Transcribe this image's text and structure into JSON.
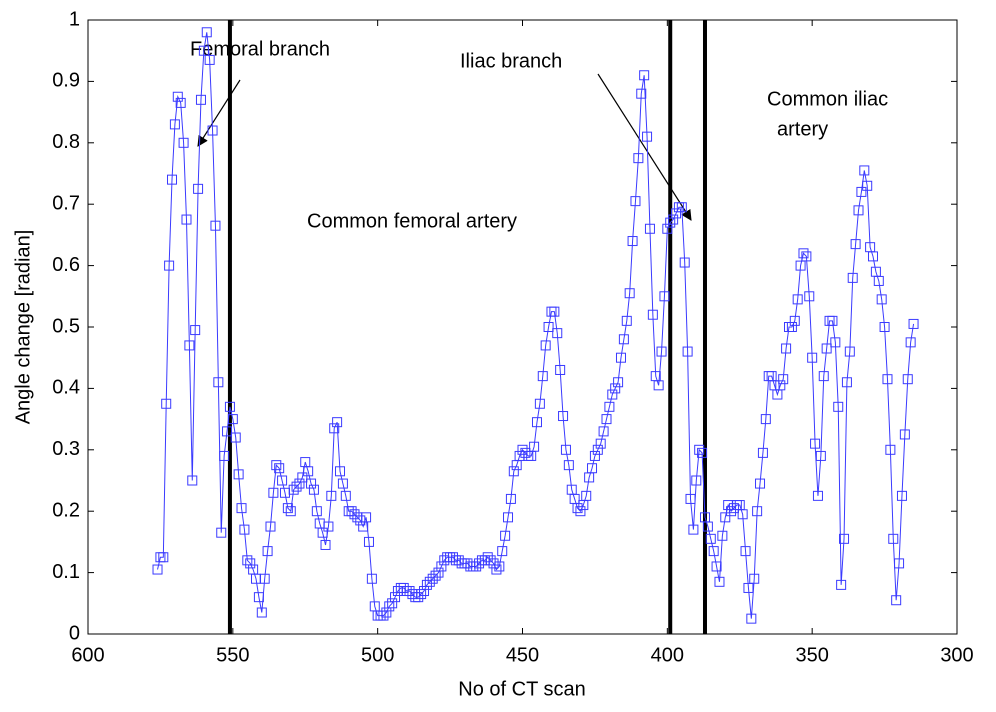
{
  "chart_data": {
    "type": "line",
    "xlabel": "No of CT scan",
    "ylabel": "Angle change [radian]",
    "xlim": [
      600,
      300
    ],
    "xticks": [
      600,
      550,
      500,
      450,
      400,
      350,
      300
    ],
    "ylim": [
      0,
      1
    ],
    "yticks": [
      0,
      0.1,
      0.2,
      0.3,
      0.4,
      0.5,
      0.6,
      0.7,
      0.8,
      0.9,
      1
    ],
    "vlines": [
      551,
      399,
      387
    ],
    "annotations": [
      "Femoral branch",
      "Iliac branch",
      "Common iliac",
      "artery",
      "Common femoral artery"
    ],
    "color": "#3a3aff",
    "x": [
      576,
      575,
      574,
      573,
      572,
      571,
      570,
      569,
      568,
      567,
      566,
      565,
      564,
      563,
      562,
      561,
      560,
      559,
      558,
      557,
      556,
      555,
      554,
      553,
      552,
      551,
      550,
      549,
      548,
      547,
      546,
      545,
      544,
      543,
      542,
      541,
      540,
      539,
      538,
      537,
      536,
      535,
      534,
      533,
      532,
      531,
      530,
      529,
      528,
      527,
      526,
      525,
      524,
      523,
      522,
      521,
      520,
      519,
      518,
      517,
      516,
      515,
      514,
      513,
      512,
      511,
      510,
      509,
      508,
      507,
      506,
      505,
      504,
      503,
      502,
      501,
      500,
      499,
      498,
      497,
      496,
      495,
      494,
      493,
      492,
      491,
      490,
      489,
      488,
      487,
      486,
      485,
      484,
      483,
      482,
      481,
      480,
      479,
      478,
      477,
      476,
      475,
      474,
      473,
      472,
      471,
      470,
      469,
      468,
      467,
      466,
      465,
      464,
      463,
      462,
      461,
      460,
      459,
      458,
      457,
      456,
      455,
      454,
      453,
      452,
      451,
      450,
      449,
      448,
      447,
      446,
      445,
      444,
      443,
      442,
      441,
      440,
      439,
      438,
      437,
      436,
      435,
      434,
      433,
      432,
      431,
      430,
      429,
      428,
      427,
      426,
      425,
      424,
      423,
      422,
      421,
      420,
      419,
      418,
      417,
      416,
      415,
      414,
      413,
      412,
      411,
      410,
      409,
      408,
      407,
      406,
      405,
      404,
      403,
      402,
      401,
      400,
      399,
      398,
      397,
      396,
      395,
      394,
      393,
      392,
      391,
      390,
      389,
      388,
      387,
      386,
      385,
      384,
      383,
      382,
      381,
      380,
      379,
      378,
      377,
      376,
      375,
      374,
      373,
      372,
      371,
      370,
      369,
      368,
      367,
      366,
      365,
      364,
      363,
      362,
      361,
      360,
      359,
      358,
      357,
      356,
      355,
      354,
      353,
      352,
      351,
      350,
      349,
      348,
      347,
      346,
      345,
      344,
      343,
      342,
      341,
      340,
      339,
      338,
      337,
      336,
      335,
      334,
      333,
      332,
      331,
      330,
      329,
      328,
      327,
      326,
      325,
      324,
      323,
      322,
      321,
      320,
      319,
      318,
      317,
      316,
      315
    ],
    "values": [
      0.105,
      0.125,
      0.125,
      0.375,
      0.6,
      0.74,
      0.83,
      0.875,
      0.865,
      0.8,
      0.675,
      0.47,
      0.25,
      0.495,
      0.725,
      0.87,
      0.95,
      0.98,
      0.935,
      0.82,
      0.665,
      0.41,
      0.165,
      0.29,
      0.33,
      0.37,
      0.35,
      0.32,
      0.26,
      0.205,
      0.17,
      0.12,
      0.115,
      0.105,
      0.09,
      0.06,
      0.035,
      0.09,
      0.135,
      0.175,
      0.23,
      0.275,
      0.27,
      0.25,
      0.23,
      0.205,
      0.2,
      0.235,
      0.24,
      0.245,
      0.255,
      0.28,
      0.265,
      0.245,
      0.235,
      0.2,
      0.18,
      0.165,
      0.145,
      0.175,
      0.225,
      0.335,
      0.345,
      0.265,
      0.245,
      0.225,
      0.2,
      0.2,
      0.195,
      0.19,
      0.185,
      0.175,
      0.19,
      0.15,
      0.09,
      0.045,
      0.03,
      0.03,
      0.03,
      0.035,
      0.045,
      0.05,
      0.06,
      0.07,
      0.075,
      0.075,
      0.07,
      0.07,
      0.065,
      0.06,
      0.06,
      0.065,
      0.07,
      0.08,
      0.085,
      0.09,
      0.095,
      0.1,
      0.11,
      0.12,
      0.125,
      0.125,
      0.125,
      0.12,
      0.12,
      0.115,
      0.115,
      0.115,
      0.11,
      0.11,
      0.11,
      0.115,
      0.12,
      0.12,
      0.125,
      0.12,
      0.115,
      0.105,
      0.11,
      0.135,
      0.16,
      0.19,
      0.22,
      0.265,
      0.275,
      0.29,
      0.3,
      0.295,
      0.29,
      0.29,
      0.305,
      0.345,
      0.375,
      0.42,
      0.47,
      0.5,
      0.525,
      0.525,
      0.49,
      0.43,
      0.355,
      0.3,
      0.275,
      0.235,
      0.22,
      0.205,
      0.2,
      0.21,
      0.225,
      0.255,
      0.27,
      0.29,
      0.3,
      0.31,
      0.33,
      0.35,
      0.37,
      0.39,
      0.4,
      0.41,
      0.45,
      0.48,
      0.51,
      0.555,
      0.64,
      0.705,
      0.775,
      0.88,
      0.91,
      0.81,
      0.66,
      0.52,
      0.42,
      0.405,
      0.46,
      0.55,
      0.66,
      0.67,
      0.675,
      0.685,
      0.695,
      0.695,
      0.605,
      0.46,
      0.22,
      0.17,
      0.25,
      0.3,
      0.295,
      0.19,
      0.175,
      0.155,
      0.135,
      0.11,
      0.085,
      0.16,
      0.19,
      0.21,
      0.2,
      0.205,
      0.21,
      0.21,
      0.195,
      0.135,
      0.075,
      0.025,
      0.09,
      0.2,
      0.245,
      0.295,
      0.35,
      0.42,
      0.42,
      0.405,
      0.39,
      0.405,
      0.415,
      0.465,
      0.5,
      0.5,
      0.51,
      0.545,
      0.6,
      0.62,
      0.615,
      0.55,
      0.45,
      0.31,
      0.225,
      0.29,
      0.42,
      0.465,
      0.51,
      0.51,
      0.475,
      0.37,
      0.08,
      0.155,
      0.41,
      0.46,
      0.58,
      0.635,
      0.69,
      0.72,
      0.755,
      0.73,
      0.63,
      0.615,
      0.59,
      0.575,
      0.545,
      0.5,
      0.415,
      0.3,
      0.155,
      0.055,
      0.115,
      0.225,
      0.325,
      0.415,
      0.475,
      0.505
    ]
  }
}
